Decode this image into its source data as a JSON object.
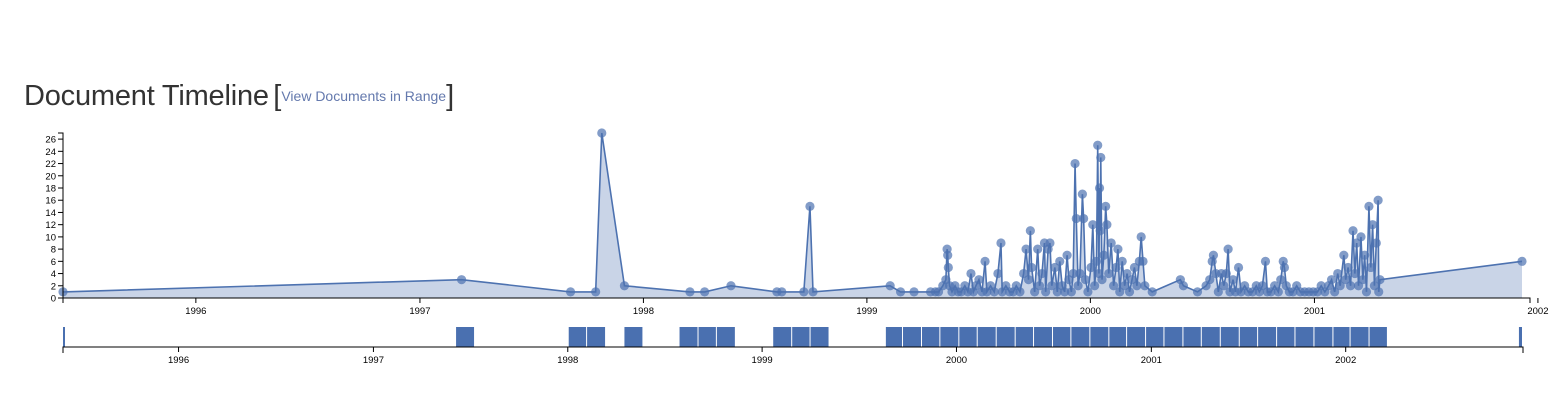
{
  "header": {
    "title": "Document Timeline",
    "bracket_open": "[",
    "link_label": "View Documents in Range",
    "bracket_close": "]"
  },
  "colors": {
    "line": "#4d72b0",
    "area": "#c9d4e7",
    "point": "#4d72b0",
    "brush_bar": "#4a70b0",
    "axis": "#000000"
  },
  "chart_data": [
    {
      "type": "area",
      "title": "",
      "xlabel": "",
      "ylabel": "",
      "ylim": [
        0,
        27
      ],
      "y_ticks": [
        "0",
        "2",
        "4",
        "6",
        "8",
        "10",
        "12",
        "14",
        "16",
        "18",
        "20",
        "22",
        "24",
        "26"
      ],
      "x_ticks": [
        "1996",
        "1997",
        "1998",
        "1999",
        "2000",
        "2001",
        "2002"
      ],
      "xlim": [
        "1995-05-29",
        "2001-12-06"
      ],
      "grid": false,
      "markers": true,
      "points": [
        [
          "1995-05-29",
          1
        ],
        [
          "1997-03-10",
          3
        ],
        [
          "1997-09-04",
          1
        ],
        [
          "1997-10-15",
          1
        ],
        [
          "1997-10-25",
          27
        ],
        [
          "1997-12-01",
          2
        ],
        [
          "1998-03-18",
          1
        ],
        [
          "1998-04-11",
          1
        ],
        [
          "1998-05-24",
          2
        ],
        [
          "1998-08-07",
          1
        ],
        [
          "1998-08-15",
          1
        ],
        [
          "1998-09-20",
          1
        ],
        [
          "1998-09-30",
          15
        ],
        [
          "1998-10-05",
          1
        ],
        [
          "1999-02-08",
          2
        ],
        [
          "1999-02-25",
          1
        ],
        [
          "1999-03-19",
          1
        ],
        [
          "1999-04-15",
          1
        ],
        [
          "1999-04-23",
          1
        ],
        [
          "1999-04-28",
          1
        ],
        [
          "1999-05-05",
          2
        ],
        [
          "1999-05-10",
          3
        ],
        [
          "1999-05-12",
          8
        ],
        [
          "1999-05-13",
          7
        ],
        [
          "1999-05-14",
          5
        ],
        [
          "1999-05-16",
          2
        ],
        [
          "1999-05-20",
          1
        ],
        [
          "1999-05-25",
          2
        ],
        [
          "1999-05-30",
          1
        ],
        [
          "1999-06-04",
          1
        ],
        [
          "1999-06-10",
          2
        ],
        [
          "1999-06-15",
          1
        ],
        [
          "1999-06-20",
          4
        ],
        [
          "1999-06-24",
          1
        ],
        [
          "1999-06-28",
          2
        ],
        [
          "1999-07-03",
          3
        ],
        [
          "1999-07-08",
          1
        ],
        [
          "1999-07-13",
          6
        ],
        [
          "1999-07-16",
          1
        ],
        [
          "1999-07-22",
          2
        ],
        [
          "1999-07-28",
          1
        ],
        [
          "1999-08-03",
          4
        ],
        [
          "1999-08-08",
          9
        ],
        [
          "1999-08-10",
          1
        ],
        [
          "1999-08-16",
          2
        ],
        [
          "1999-08-22",
          1
        ],
        [
          "1999-08-28",
          1
        ],
        [
          "1999-09-02",
          2
        ],
        [
          "1999-09-08",
          1
        ],
        [
          "1999-09-14",
          4
        ],
        [
          "1999-09-18",
          8
        ],
        [
          "1999-09-22",
          3
        ],
        [
          "1999-09-25",
          11
        ],
        [
          "1999-09-27",
          5
        ],
        [
          "1999-10-02",
          1
        ],
        [
          "1999-10-07",
          8
        ],
        [
          "1999-10-10",
          2
        ],
        [
          "1999-10-14",
          4
        ],
        [
          "1999-10-18",
          9
        ],
        [
          "1999-10-20",
          1
        ],
        [
          "1999-10-24",
          8
        ],
        [
          "1999-10-27",
          9
        ],
        [
          "1999-10-30",
          2
        ],
        [
          "1999-11-04",
          5
        ],
        [
          "1999-11-08",
          1
        ],
        [
          "1999-11-12",
          6
        ],
        [
          "1999-11-16",
          2
        ],
        [
          "1999-11-20",
          1
        ],
        [
          "1999-11-24",
          7
        ],
        [
          "1999-11-27",
          3
        ],
        [
          "1999-12-01",
          1
        ],
        [
          "1999-12-04",
          4
        ],
        [
          "1999-12-07",
          22
        ],
        [
          "1999-12-09",
          13
        ],
        [
          "1999-12-12",
          2
        ],
        [
          "1999-12-15",
          4
        ],
        [
          "1999-12-19",
          17
        ],
        [
          "1999-12-21",
          13
        ],
        [
          "1999-12-24",
          3
        ],
        [
          "1999-12-28",
          1
        ],
        [
          "2000-01-02",
          5
        ],
        [
          "2000-01-05",
          12
        ],
        [
          "2000-01-08",
          2
        ],
        [
          "2000-01-11",
          6
        ],
        [
          "2000-01-13",
          25
        ],
        [
          "2000-01-15",
          4
        ],
        [
          "2000-01-16",
          18
        ],
        [
          "2000-01-17",
          11
        ],
        [
          "2000-01-18",
          23
        ],
        [
          "2000-01-20",
          3
        ],
        [
          "2000-01-23",
          7
        ],
        [
          "2000-01-26",
          15
        ],
        [
          "2000-01-28",
          12
        ],
        [
          "2000-01-31",
          4
        ],
        [
          "2000-02-04",
          9
        ],
        [
          "2000-02-08",
          2
        ],
        [
          "2000-02-12",
          5
        ],
        [
          "2000-02-15",
          8
        ],
        [
          "2000-02-18",
          1
        ],
        [
          "2000-02-22",
          6
        ],
        [
          "2000-02-26",
          2
        ],
        [
          "2000-03-01",
          4
        ],
        [
          "2000-03-05",
          1
        ],
        [
          "2000-03-09",
          3
        ],
        [
          "2000-03-13",
          5
        ],
        [
          "2000-03-17",
          2
        ],
        [
          "2000-03-21",
          6
        ],
        [
          "2000-03-24",
          10
        ],
        [
          "2000-03-27",
          6
        ],
        [
          "2000-03-30",
          2
        ],
        [
          "2000-04-11",
          1
        ],
        [
          "2000-05-27",
          3
        ],
        [
          "2000-06-01",
          2
        ],
        [
          "2000-06-24",
          1
        ],
        [
          "2000-07-08",
          2
        ],
        [
          "2000-07-14",
          3
        ],
        [
          "2000-07-18",
          6
        ],
        [
          "2000-07-20",
          7
        ],
        [
          "2000-07-24",
          4
        ],
        [
          "2000-07-28",
          1
        ],
        [
          "2000-08-02",
          4
        ],
        [
          "2000-08-06",
          2
        ],
        [
          "2000-08-10",
          4
        ],
        [
          "2000-08-13",
          8
        ],
        [
          "2000-08-16",
          1
        ],
        [
          "2000-08-21",
          3
        ],
        [
          "2000-08-25",
          1
        ],
        [
          "2000-08-30",
          5
        ],
        [
          "2000-09-03",
          1
        ],
        [
          "2000-09-09",
          2
        ],
        [
          "2000-09-15",
          1
        ],
        [
          "2000-09-22",
          1
        ],
        [
          "2000-09-28",
          2
        ],
        [
          "2000-10-03",
          1
        ],
        [
          "2000-10-08",
          2
        ],
        [
          "2000-10-13",
          6
        ],
        [
          "2000-10-16",
          1
        ],
        [
          "2000-10-22",
          1
        ],
        [
          "2000-10-28",
          2
        ],
        [
          "2000-11-03",
          1
        ],
        [
          "2000-11-07",
          3
        ],
        [
          "2000-11-11",
          6
        ],
        [
          "2000-11-13",
          5
        ],
        [
          "2000-11-16",
          2
        ],
        [
          "2000-11-21",
          1
        ],
        [
          "2000-11-27",
          1
        ],
        [
          "2000-12-03",
          2
        ],
        [
          "2000-12-09",
          1
        ],
        [
          "2000-12-16",
          1
        ],
        [
          "2000-12-23",
          1
        ],
        [
          "2000-12-30",
          1
        ],
        [
          "2001-01-06",
          1
        ],
        [
          "2001-01-12",
          2
        ],
        [
          "2001-01-18",
          1
        ],
        [
          "2001-01-24",
          2
        ],
        [
          "2001-01-29",
          3
        ],
        [
          "2001-02-03",
          1
        ],
        [
          "2001-02-08",
          4
        ],
        [
          "2001-02-12",
          2
        ],
        [
          "2001-02-18",
          7
        ],
        [
          "2001-02-21",
          3
        ],
        [
          "2001-02-25",
          5
        ],
        [
          "2001-03-01",
          2
        ],
        [
          "2001-03-05",
          11
        ],
        [
          "2001-03-08",
          4
        ],
        [
          "2001-03-11",
          9
        ],
        [
          "2001-03-14",
          2
        ],
        [
          "2001-03-18",
          10
        ],
        [
          "2001-03-21",
          3
        ],
        [
          "2001-03-24",
          7
        ],
        [
          "2001-03-27",
          1
        ],
        [
          "2001-03-31",
          15
        ],
        [
          "2001-04-03",
          5
        ],
        [
          "2001-04-06",
          12
        ],
        [
          "2001-04-09",
          2
        ],
        [
          "2001-04-12",
          9
        ],
        [
          "2001-04-15",
          16
        ],
        [
          "2001-04-16",
          1
        ],
        [
          "2001-04-18",
          3
        ],
        [
          "2001-12-06",
          6
        ]
      ]
    },
    {
      "type": "bar",
      "title": "",
      "x_ticks": [
        "1996",
        "1997",
        "1998",
        "1999",
        "2000",
        "2001",
        "2002"
      ],
      "xlim": [
        "1995-05-29",
        "2002-11-30"
      ],
      "description_of_marks": "months containing documents"
    }
  ]
}
